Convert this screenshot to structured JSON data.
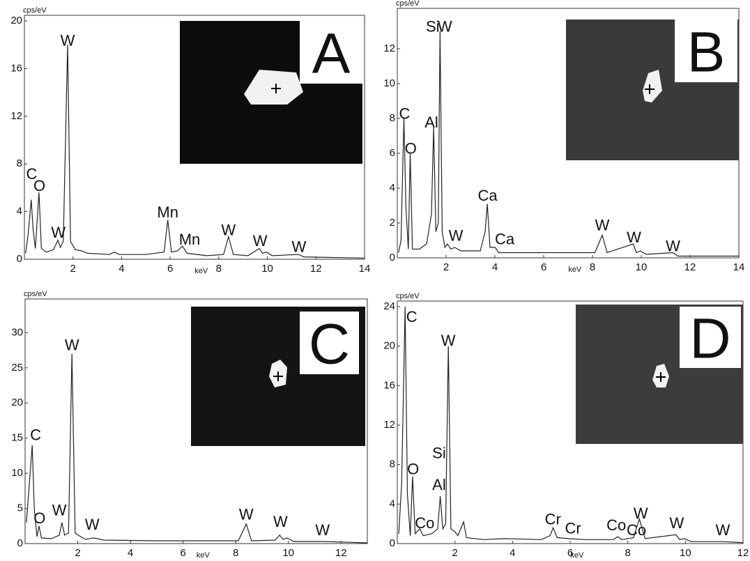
{
  "chart_data": [
    {
      "type": "line",
      "label": "A",
      "y_label": "cps/eV",
      "x_label": "keV",
      "color": "#222",
      "xlim": [
        0,
        14
      ],
      "xticks": [
        2,
        4,
        6,
        8,
        10,
        12,
        14
      ],
      "ylim": [
        0,
        20
      ],
      "yticks": [
        0,
        4,
        8,
        12,
        16,
        20
      ],
      "x": [
        0.05,
        0.15,
        0.28,
        0.36,
        0.45,
        0.6,
        0.7,
        0.9,
        1.2,
        1.38,
        1.48,
        1.6,
        1.78,
        1.9,
        2.1,
        2.35,
        2.6,
        3.5,
        3.7,
        3.9,
        5.0,
        5.75,
        5.9,
        6.05,
        6.3,
        6.5,
        6.7,
        7.5,
        8.2,
        8.4,
        8.6,
        9.2,
        9.67,
        9.8,
        9.96,
        10.2,
        11.29,
        11.5,
        12.5,
        14
      ],
      "values": [
        0.5,
        2,
        5,
        2.5,
        0.9,
        5.6,
        0.9,
        0.6,
        0.8,
        1.6,
        1,
        1.5,
        18,
        1.5,
        0.8,
        0.7,
        0.5,
        0.4,
        0.6,
        0.4,
        0.4,
        0.6,
        3.3,
        0.6,
        0.7,
        1.1,
        0.5,
        0.3,
        0.4,
        1.9,
        0.4,
        0.3,
        0.9,
        0.5,
        0.6,
        0.3,
        0.4,
        0.2,
        0.15,
        0.1
      ],
      "annotations": [
        {
          "text": "C",
          "x": 0.3,
          "y": 6.6
        },
        {
          "text": "O",
          "x": 0.62,
          "y": 5.6
        },
        {
          "text": "W",
          "x": 1.4,
          "y": 1.7
        },
        {
          "text": "W",
          "x": 1.78,
          "y": 17.8
        },
        {
          "text": "Mn",
          "x": 5.9,
          "y": 3.4
        },
        {
          "text": "Mn",
          "x": 6.8,
          "y": 1.1
        },
        {
          "text": "W",
          "x": 8.4,
          "y": 1.9
        },
        {
          "text": "W",
          "x": 9.7,
          "y": 1.0
        },
        {
          "text": "W",
          "x": 11.3,
          "y": 0.5
        }
      ]
    },
    {
      "type": "line",
      "label": "B",
      "y_label": "cps/eV",
      "x_label": "keV",
      "color": "#222",
      "xlim": [
        0,
        14
      ],
      "xticks": [
        2,
        4,
        6,
        8,
        10,
        12,
        14
      ],
      "ylim": [
        0,
        14
      ],
      "yticks": [
        0,
        2,
        4,
        6,
        8,
        10,
        12
      ],
      "x": [
        0.05,
        0.15,
        0.27,
        0.35,
        0.45,
        0.53,
        0.62,
        0.9,
        1.2,
        1.4,
        1.49,
        1.58,
        1.68,
        1.75,
        1.84,
        1.95,
        2.05,
        2.2,
        2.35,
        2.6,
        3.4,
        3.6,
        3.69,
        3.8,
        4.01,
        4.15,
        5.5,
        8.1,
        8.4,
        8.6,
        9.67,
        9.8,
        9.96,
        10.2,
        11.3,
        11.5,
        14
      ],
      "values": [
        0.3,
        1,
        8,
        3,
        0.5,
        6,
        0.5,
        0.5,
        0.8,
        2.5,
        7.5,
        1.5,
        2,
        13,
        1.5,
        0.6,
        0.8,
        0.5,
        0.6,
        0.4,
        0.4,
        1.5,
        3.1,
        0.6,
        0.6,
        0.3,
        0.3,
        0.3,
        1.3,
        0.3,
        0.8,
        0.3,
        0.4,
        0.2,
        0.3,
        0.1,
        0.1
      ],
      "annotations": [
        {
          "text": "C",
          "x": 0.3,
          "y": 7.9
        },
        {
          "text": "O",
          "x": 0.55,
          "y": 5.9
        },
        {
          "text": "Al",
          "x": 1.4,
          "y": 7.4
        },
        {
          "text": "Si",
          "x": 1.45,
          "y": 12.9
        },
        {
          "text": "W",
          "x": 1.95,
          "y": 12.9
        },
        {
          "text": "Ca",
          "x": 3.7,
          "y": 3.2
        },
        {
          "text": "W",
          "x": 2.4,
          "y": 0.9
        },
        {
          "text": "Ca",
          "x": 4.4,
          "y": 0.7
        },
        {
          "text": "W",
          "x": 8.4,
          "y": 1.5
        },
        {
          "text": "W",
          "x": 9.7,
          "y": 0.8
        },
        {
          "text": "W",
          "x": 11.3,
          "y": 0.3
        }
      ]
    },
    {
      "type": "line",
      "label": "C",
      "y_label": "cps/eV",
      "x_label": "keV",
      "color": "#222",
      "xlim": [
        0,
        13
      ],
      "xticks": [
        2,
        4,
        6,
        8,
        10,
        12
      ],
      "ylim": [
        0,
        34
      ],
      "yticks": [
        0,
        5,
        10,
        15,
        20,
        25,
        30
      ],
      "x": [
        0.05,
        0.15,
        0.27,
        0.35,
        0.45,
        0.53,
        0.62,
        1.0,
        1.3,
        1.4,
        1.5,
        1.65,
        1.78,
        1.9,
        2.1,
        2.3,
        2.6,
        3.0,
        5.0,
        8.1,
        8.4,
        8.6,
        9.5,
        9.67,
        9.8,
        9.96,
        10.2,
        11.3,
        13
      ],
      "values": [
        3,
        8,
        14,
        5,
        1,
        2.5,
        0.8,
        0.7,
        1.2,
        3,
        1.2,
        1.5,
        27,
        1.5,
        1,
        0.6,
        0.8,
        0.5,
        0.4,
        0.4,
        2.8,
        0.4,
        0.5,
        1.2,
        0.6,
        0.8,
        0.3,
        0.3,
        0.1
      ],
      "annotations": [
        {
          "text": "C",
          "x": 0.4,
          "y": 14.5
        },
        {
          "text": "O",
          "x": 0.55,
          "y": 2.7
        },
        {
          "text": "W",
          "x": 1.3,
          "y": 3.8
        },
        {
          "text": "W",
          "x": 1.78,
          "y": 27.3
        },
        {
          "text": "W",
          "x": 2.55,
          "y": 1.8
        },
        {
          "text": "W",
          "x": 8.4,
          "y": 3.2
        },
        {
          "text": "W",
          "x": 9.7,
          "y": 2.2
        },
        {
          "text": "W",
          "x": 11.3,
          "y": 1.0
        }
      ]
    },
    {
      "type": "line",
      "label": "D",
      "y_label": "cps/eV",
      "x_label": "keV",
      "color": "#222",
      "xlim": [
        0,
        12
      ],
      "xticks": [
        2,
        4,
        6,
        8,
        10,
        12
      ],
      "ylim": [
        0,
        24
      ],
      "yticks": [
        0,
        4,
        8,
        12,
        16,
        20,
        24
      ],
      "x": [
        0.05,
        0.15,
        0.27,
        0.35,
        0.45,
        0.53,
        0.62,
        0.78,
        0.9,
        1.2,
        1.4,
        1.49,
        1.58,
        1.68,
        1.77,
        1.86,
        2.0,
        2.1,
        2.3,
        2.4,
        3.0,
        3.7,
        5.0,
        5.3,
        5.41,
        5.55,
        5.95,
        6.5,
        7.5,
        7.65,
        7.8,
        8.2,
        8.4,
        8.6,
        9.67,
        9.8,
        9.96,
        10.2,
        11.3,
        12
      ],
      "values": [
        1,
        6,
        24,
        5,
        0.8,
        6.8,
        1,
        1.5,
        0.8,
        1,
        1.5,
        4.8,
        1.5,
        2,
        20,
        1.5,
        1.2,
        0.8,
        2.2,
        0.6,
        0.4,
        0.5,
        0.4,
        0.8,
        1.6,
        0.6,
        0.5,
        0.4,
        0.4,
        0.7,
        0.4,
        0.6,
        2.5,
        0.5,
        0.9,
        0.4,
        0.5,
        0.2,
        0.2,
        0.1
      ],
      "annotations": [
        {
          "text": "C",
          "x": 0.5,
          "y": 22.3
        },
        {
          "text": "O",
          "x": 0.55,
          "y": 6.9
        },
        {
          "text": "Co",
          "x": 0.95,
          "y": 1.4
        },
        {
          "text": "Si",
          "x": 1.45,
          "y": 8.5
        },
        {
          "text": "Al",
          "x": 1.45,
          "y": 5.3
        },
        {
          "text": "W",
          "x": 1.77,
          "y": 19.9
        },
        {
          "text": "Cr",
          "x": 5.4,
          "y": 1.8
        },
        {
          "text": "Cr",
          "x": 6.1,
          "y": 0.9
        },
        {
          "text": "Co",
          "x": 7.6,
          "y": 1.2
        },
        {
          "text": "Co",
          "x": 8.3,
          "y": 0.7
        },
        {
          "text": "W",
          "x": 8.45,
          "y": 2.4
        },
        {
          "text": "W",
          "x": 9.7,
          "y": 1.4
        },
        {
          "text": "W",
          "x": 11.3,
          "y": 0.7
        }
      ]
    }
  ]
}
